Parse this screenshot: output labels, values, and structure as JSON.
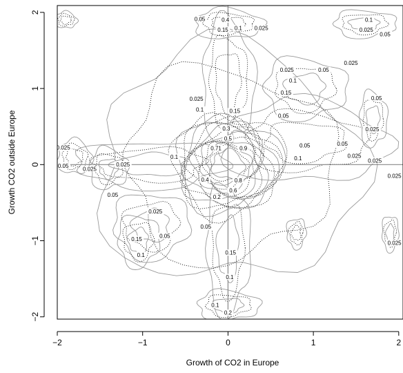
{
  "chart_data": {
    "type": "contour",
    "xlabel": "Growth of CO2 in Europe",
    "ylabel": "Growth CO2 outside Europe",
    "xlim": [
      -2.0,
      2.05
    ],
    "ylim": [
      -2.03,
      2.09
    ],
    "xticks": [
      -2,
      -1,
      0,
      1,
      2
    ],
    "yticks": [
      -2,
      -1,
      0,
      1,
      2
    ],
    "xtick_labels": [
      "−2",
      "−1",
      "0",
      "1",
      "2"
    ],
    "ytick_labels": [
      "−2",
      "−1",
      "0",
      "1",
      "2"
    ],
    "reference_lines": {
      "x": 0,
      "y": 0
    },
    "series": [
      {
        "style": "solid",
        "color": "#999999"
      },
      {
        "style": "dotted",
        "color": "#000000"
      }
    ],
    "contour_labels": [
      {
        "text": "0.05",
        "x": -0.33,
        "y": 1.91
      },
      {
        "text": "0.4",
        "x": -0.03,
        "y": 1.9
      },
      {
        "text": "0.15",
        "x": -0.06,
        "y": 1.77
      },
      {
        "text": "0.1",
        "x": 0.12,
        "y": 1.79
      },
      {
        "text": "0.025",
        "x": 0.39,
        "y": 1.79
      },
      {
        "text": "0.1",
        "x": 1.65,
        "y": 1.9
      },
      {
        "text": "0.025",
        "x": 1.62,
        "y": 1.77
      },
      {
        "text": "0.05",
        "x": 1.84,
        "y": 1.71
      },
      {
        "text": "0.025",
        "x": 1.44,
        "y": 1.33
      },
      {
        "text": "0.025",
        "x": 0.69,
        "y": 1.24
      },
      {
        "text": "0.05",
        "x": 1.12,
        "y": 1.24
      },
      {
        "text": "0.1",
        "x": 0.76,
        "y": 1.1
      },
      {
        "text": "0.15",
        "x": 0.68,
        "y": 0.94
      },
      {
        "text": "0.05",
        "x": 1.74,
        "y": 0.87
      },
      {
        "text": "0.025",
        "x": -0.37,
        "y": 0.86
      },
      {
        "text": "0.1",
        "x": -0.33,
        "y": 0.72
      },
      {
        "text": "0.15",
        "x": 0.08,
        "y": 0.7
      },
      {
        "text": "0.05",
        "x": 0.65,
        "y": 0.64
      },
      {
        "text": "0.025",
        "x": 1.69,
        "y": 0.46
      },
      {
        "text": "0.3",
        "x": -0.02,
        "y": 0.47
      },
      {
        "text": "0.5",
        "x": 0.0,
        "y": 0.34
      },
      {
        "text": "0.05",
        "x": 0.9,
        "y": 0.25
      },
      {
        "text": "0.05",
        "x": 1.34,
        "y": 0.27
      },
      {
        "text": "0.71",
        "x": -0.14,
        "y": 0.21
      },
      {
        "text": "0.9",
        "x": 0.18,
        "y": 0.21
      },
      {
        "text": "0.025",
        "x": -1.93,
        "y": 0.22
      },
      {
        "text": "0.025",
        "x": 1.48,
        "y": 0.11
      },
      {
        "text": "0.025",
        "x": 1.72,
        "y": 0.05
      },
      {
        "text": "0.1",
        "x": -0.63,
        "y": 0.1
      },
      {
        "text": "0.1",
        "x": 0.82,
        "y": 0.08
      },
      {
        "text": "0.025",
        "x": -1.23,
        "y": 0.0
      },
      {
        "text": "0.05",
        "x": -1.93,
        "y": -0.02
      },
      {
        "text": "0.025",
        "x": -1.62,
        "y": -0.06
      },
      {
        "text": "0.025",
        "x": 1.95,
        "y": -0.15
      },
      {
        "text": "0.4",
        "x": -0.27,
        "y": -0.2
      },
      {
        "text": "0.6",
        "x": 0.06,
        "y": -0.34
      },
      {
        "text": "0.8",
        "x": 0.12,
        "y": -0.21
      },
      {
        "text": "0.2",
        "x": -0.13,
        "y": -0.43
      },
      {
        "text": "0.05",
        "x": -1.35,
        "y": -0.4
      },
      {
        "text": "0.025",
        "x": -0.85,
        "y": -0.62
      },
      {
        "text": "0.05",
        "x": -0.26,
        "y": -0.82
      },
      {
        "text": "0.05",
        "x": -0.74,
        "y": -0.94
      },
      {
        "text": "0.15",
        "x": -1.07,
        "y": -0.98
      },
      {
        "text": "0.1",
        "x": -1.02,
        "y": -1.19
      },
      {
        "text": "0.025",
        "x": 1.95,
        "y": -1.03
      },
      {
        "text": "0.15",
        "x": 0.03,
        "y": -1.16
      },
      {
        "text": "0.1",
        "x": 0.02,
        "y": -1.48
      },
      {
        "text": "0.1",
        "x": -0.15,
        "y": -1.85
      },
      {
        "text": "0.2",
        "x": 0.0,
        "y": -1.95
      }
    ]
  }
}
